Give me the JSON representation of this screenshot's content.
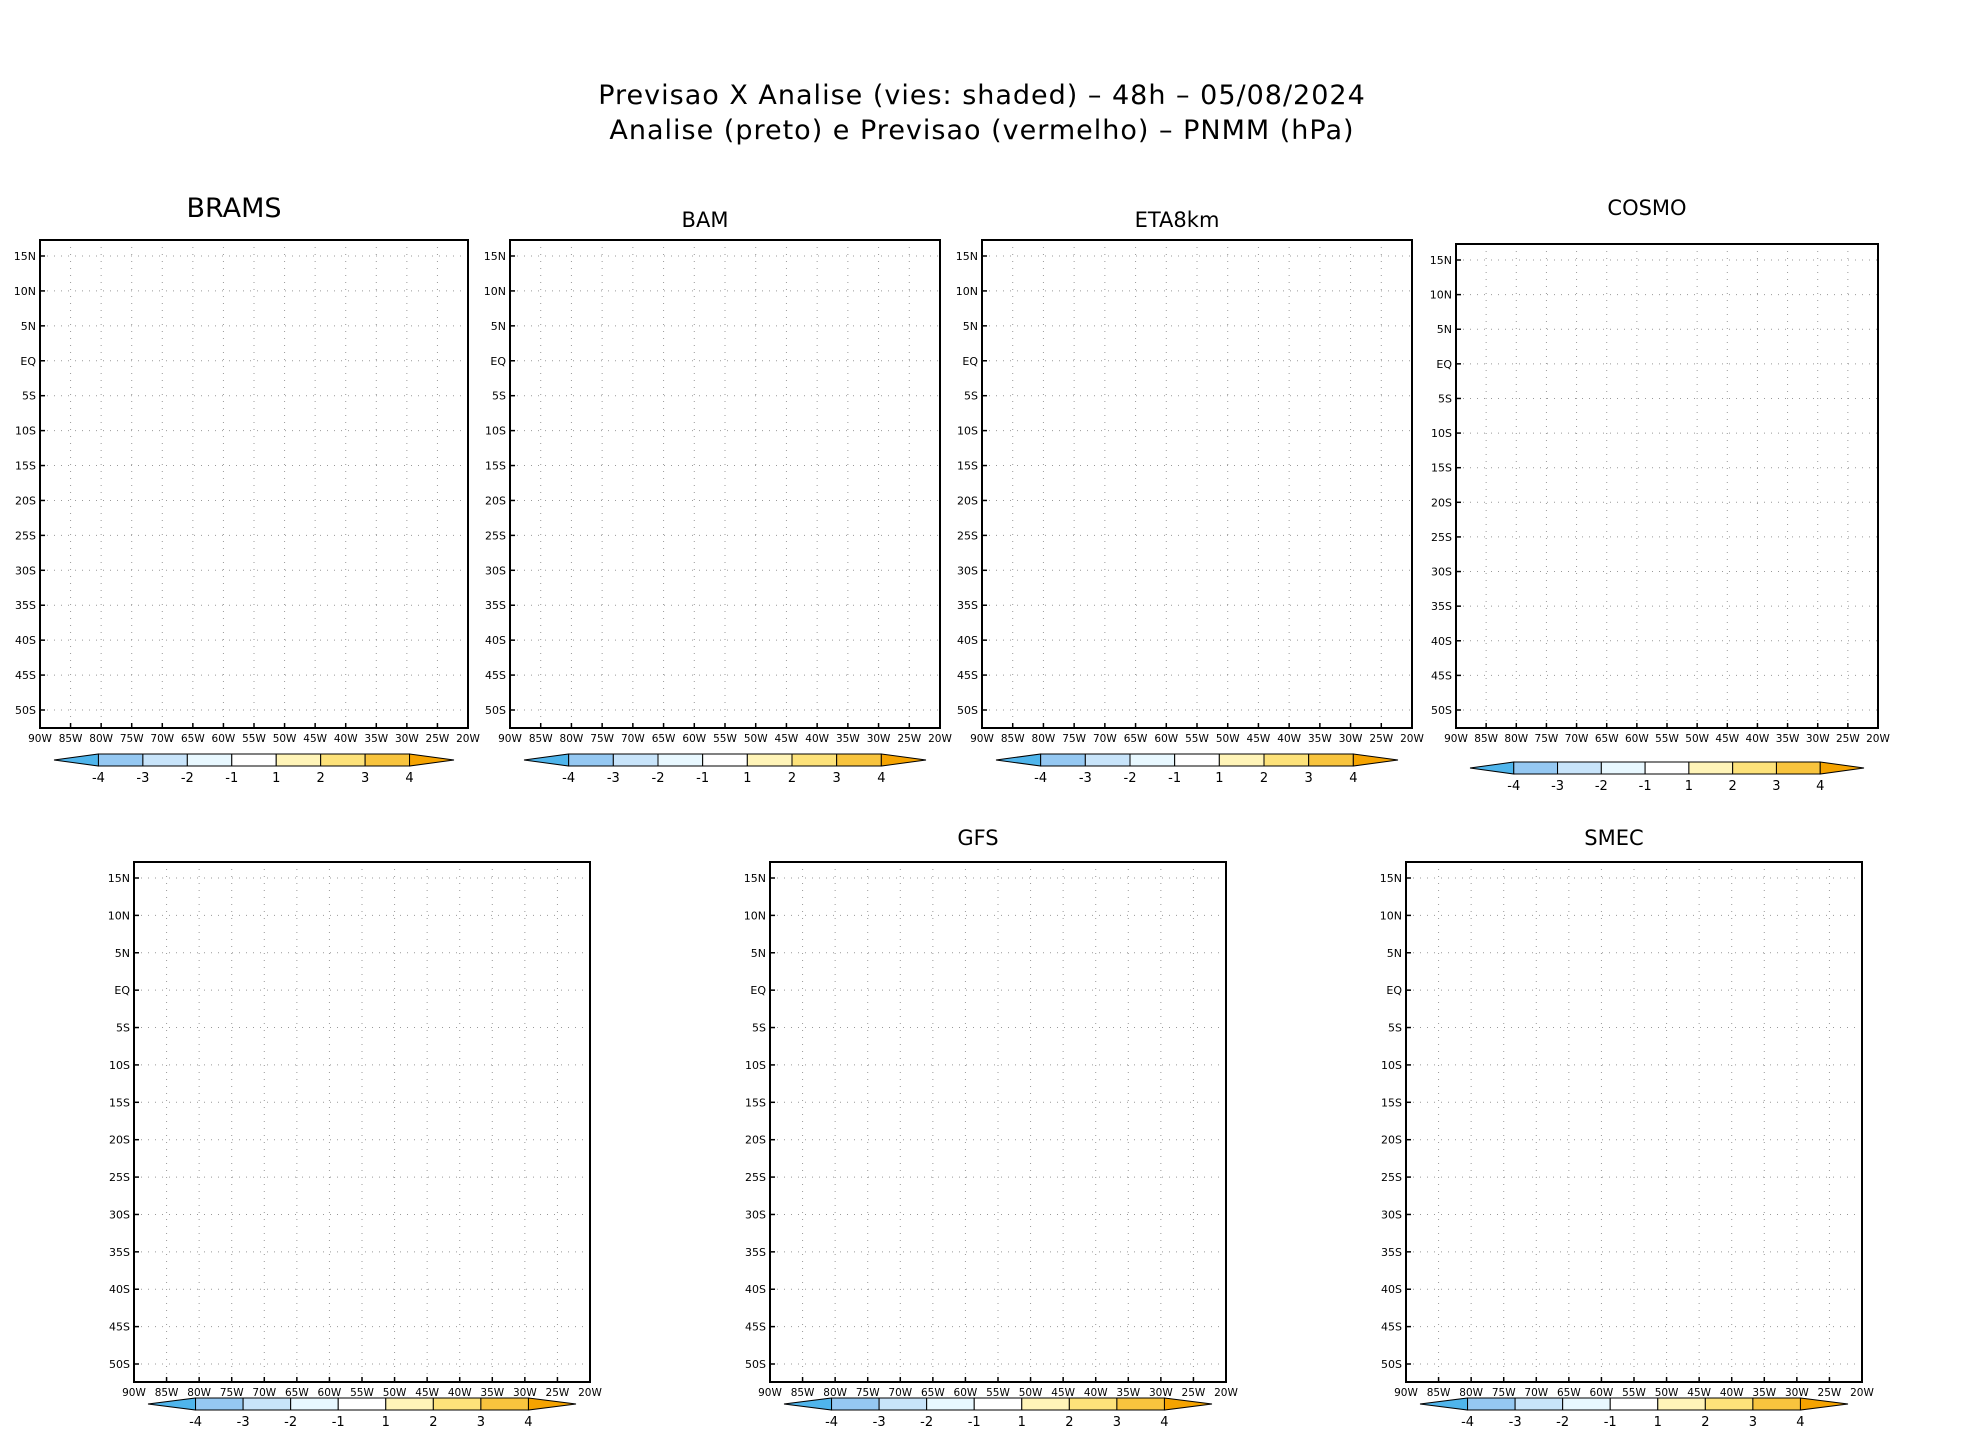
{
  "header": {
    "line1": "Previsao X Analise (vies: shaded) – 48h – 05/08/2024",
    "line2": "Analise (preto) e Previsao (vermelho) – PNMM (hPa)"
  },
  "map_axes": {
    "lat_labels": [
      "15N",
      "10N",
      "5N",
      "EQ",
      "5S",
      "10S",
      "15S",
      "20S",
      "25S",
      "30S",
      "35S",
      "40S",
      "45S",
      "50S"
    ],
    "lon_labels": [
      "90W",
      "85W",
      "80W",
      "75W",
      "70W",
      "65W",
      "60W",
      "55W",
      "50W",
      "45W",
      "40W",
      "35W",
      "30W",
      "25W",
      "20W"
    ]
  },
  "colorbar": {
    "labels": [
      "-4",
      "-3",
      "-2",
      "-1",
      "1",
      "2",
      "3",
      "4"
    ],
    "colors": [
      "#4fb5ec",
      "#95c8f2",
      "#c8e4fa",
      "#e8f8ff",
      "#ffffff",
      "#fff4b8",
      "#fde27a",
      "#f8c43e",
      "#f5a300"
    ]
  },
  "panels": [
    {
      "id": "brams",
      "title": "BRAMS"
    },
    {
      "id": "bam",
      "title": "BAM"
    },
    {
      "id": "eta8km",
      "title": "ETA8km"
    },
    {
      "id": "cosmo",
      "title": "COSMO"
    },
    {
      "id": "unnamed",
      "title": ""
    },
    {
      "id": "gfs",
      "title": "GFS"
    },
    {
      "id": "smec",
      "title": "SMEC"
    }
  ]
}
